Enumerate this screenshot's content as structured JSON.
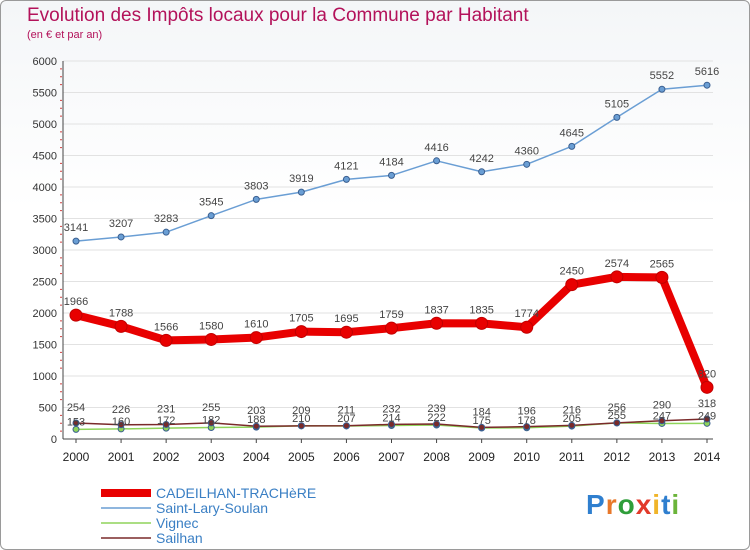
{
  "chart_data": {
    "type": "line",
    "title": "Evolution des Impôts locaux pour la Commune par Habitant",
    "subtitle": "(en € et par an)",
    "categories": [
      "2000",
      "2001",
      "2002",
      "2003",
      "2004",
      "2005",
      "2006",
      "2007",
      "2008",
      "2009",
      "2010",
      "2011",
      "2012",
      "2013",
      "2014"
    ],
    "ylim": [
      0,
      6000
    ],
    "yticks": [
      "0",
      "500",
      "1000",
      "1500",
      "2000",
      "2500",
      "3000",
      "3500",
      "4000",
      "4500",
      "5000",
      "5500",
      "6000"
    ],
    "series": [
      {
        "name": "CADEILHAN-TRACHèRE",
        "color": "#e80000",
        "width": 8,
        "values": [
          1966,
          1788,
          1566,
          1580,
          1610,
          1705,
          1695,
          1759,
          1837,
          1835,
          1774,
          2450,
          2574,
          2565,
          820
        ],
        "labels": [
          "1966",
          "1788",
          "1566",
          "1580",
          "1610",
          "1705",
          "1695",
          "1759",
          "1837",
          "1835",
          "1774",
          "2450",
          "2574",
          "2565",
          "820"
        ]
      },
      {
        "name": "Saint-Lary-Soulan",
        "color": "#6a9ed4",
        "width": 1.5,
        "values": [
          3141,
          3207,
          3283,
          3545,
          3803,
          3919,
          4121,
          4184,
          4416,
          4242,
          4360,
          4645,
          5105,
          5552,
          5616
        ],
        "labels": [
          "3141",
          "3207",
          "3283",
          "3545",
          "3803",
          "3919",
          "4121",
          "4184",
          "4416",
          "4242",
          "4360",
          "4645",
          "5105",
          "5552",
          "5616"
        ]
      },
      {
        "name": "Vignec",
        "color": "#8fd45a",
        "width": 1.5,
        "values": [
          153,
          160,
          172,
          182,
          188,
          210,
          207,
          214,
          222,
          175,
          178,
          205,
          255,
          247,
          249
        ],
        "labels": [
          "153",
          "160",
          "172",
          "182",
          "188",
          "210",
          "207",
          "214",
          "222",
          "175",
          "178",
          "205",
          "255",
          "247",
          "249"
        ]
      },
      {
        "name": "Sailhan",
        "color": "#7a2a2a",
        "width": 1.5,
        "values": [
          254,
          226,
          231,
          255,
          203,
          209,
          211,
          232,
          239,
          184,
          196,
          216,
          256,
          290,
          318
        ],
        "labels": [
          "254",
          "226",
          "231",
          "255",
          "203",
          "209",
          "211",
          "232",
          "239",
          "184",
          "196",
          "216",
          "256",
          "290",
          "318"
        ]
      }
    ],
    "legend_position": "bottom-left"
  },
  "logo": {
    "letters": [
      "P",
      "r",
      "o",
      "x",
      "i",
      "t",
      "i"
    ]
  }
}
